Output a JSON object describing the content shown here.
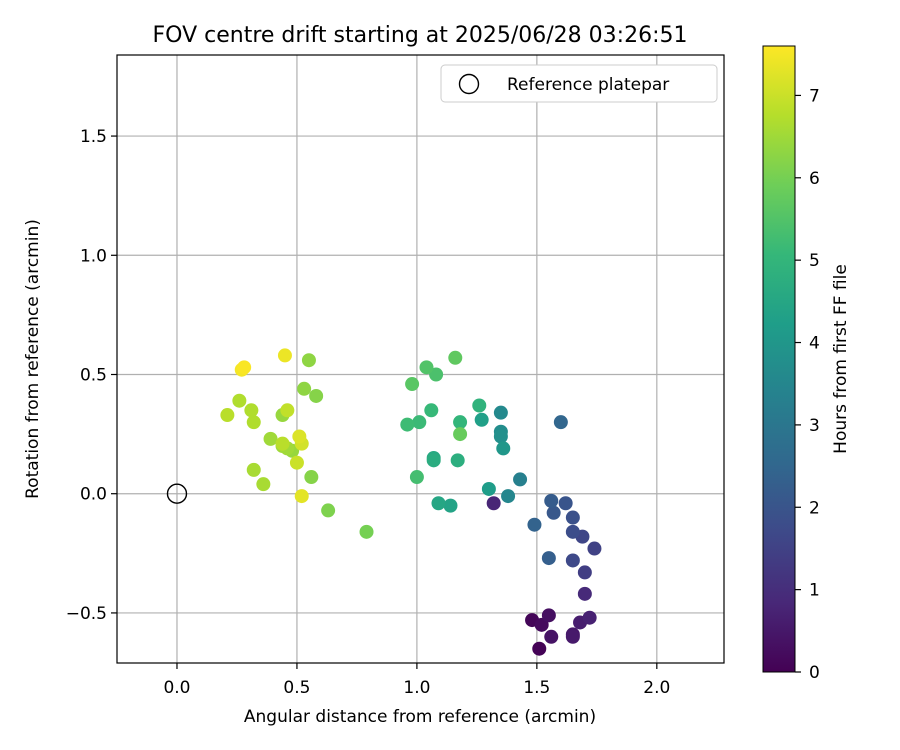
{
  "chart_data": {
    "type": "scatter",
    "title": "FOV centre drift starting at 2025/06/28 03:26:51",
    "xlabel": "Angular distance from reference (arcmin)",
    "ylabel": "Rotation from reference (arcmin)",
    "xlim": [
      -0.25,
      2.28
    ],
    "ylim": [
      -0.71,
      1.84
    ],
    "xticks": [
      "0.0",
      "0.5",
      "1.0",
      "1.5",
      "2.0"
    ],
    "xtick_values": [
      0.0,
      0.5,
      1.0,
      1.5,
      2.0
    ],
    "yticks": [
      "−0.5",
      "0.0",
      "0.5",
      "1.0",
      "1.5"
    ],
    "ytick_values": [
      -0.5,
      0.0,
      0.5,
      1.0,
      1.5
    ],
    "grid": true,
    "legend": {
      "position": "top-right",
      "entries": [
        {
          "label": "Reference platepar",
          "marker": "open-circle"
        }
      ]
    },
    "reference_point": {
      "x": 0.0,
      "y": 0.0
    },
    "colorbar": {
      "label": "Hours from first FF file",
      "colormap": "viridis",
      "range": [
        0,
        7.6
      ],
      "ticks": [
        "0",
        "1",
        "2",
        "3",
        "4",
        "5",
        "6",
        "7"
      ],
      "tick_values": [
        0,
        1,
        2,
        3,
        4,
        5,
        6,
        7
      ]
    },
    "series": [
      {
        "points": [
          [
            1.51,
            -0.65,
            0.05
          ],
          [
            1.48,
            -0.53,
            0.1
          ],
          [
            1.52,
            -0.55,
            0.2
          ],
          [
            1.55,
            -0.51,
            0.3
          ],
          [
            1.56,
            -0.6,
            0.4
          ],
          [
            1.65,
            -0.59,
            0.5
          ],
          [
            1.65,
            -0.6,
            0.55
          ],
          [
            1.68,
            -0.54,
            0.6
          ],
          [
            1.72,
            -0.52,
            0.7
          ],
          [
            1.32,
            -0.04,
            0.8
          ],
          [
            1.7,
            -0.42,
            0.9
          ],
          [
            1.7,
            -0.33,
            1.4
          ],
          [
            1.74,
            -0.23,
            1.5
          ],
          [
            1.69,
            -0.18,
            1.6
          ],
          [
            1.65,
            -0.28,
            1.7
          ],
          [
            1.65,
            -0.16,
            1.8
          ],
          [
            1.65,
            -0.1,
            1.9
          ],
          [
            1.62,
            -0.04,
            2.0
          ],
          [
            1.57,
            -0.08,
            2.1
          ],
          [
            1.56,
            -0.03,
            2.2
          ],
          [
            1.55,
            -0.27,
            2.3
          ],
          [
            1.49,
            -0.13,
            2.4
          ],
          [
            1.6,
            0.3,
            2.5
          ],
          [
            1.43,
            0.06,
            3.3
          ],
          [
            1.38,
            -0.01,
            3.5
          ],
          [
            1.35,
            0.34,
            3.6
          ],
          [
            1.35,
            0.26,
            3.7
          ],
          [
            1.35,
            0.24,
            3.8
          ],
          [
            1.36,
            0.19,
            4.0
          ],
          [
            1.3,
            0.02,
            4.2
          ],
          [
            1.27,
            0.31,
            4.3
          ],
          [
            1.14,
            -0.05,
            4.4
          ],
          [
            1.09,
            -0.04,
            4.5
          ],
          [
            1.07,
            0.15,
            4.6
          ],
          [
            1.07,
            0.14,
            4.7
          ],
          [
            1.17,
            0.14,
            4.75
          ],
          [
            1.26,
            0.37,
            4.9
          ],
          [
            1.18,
            0.3,
            5.0
          ],
          [
            1.06,
            0.35,
            5.1
          ],
          [
            1.01,
            0.3,
            5.15
          ],
          [
            0.96,
            0.29,
            5.2
          ],
          [
            1.0,
            0.07,
            5.3
          ],
          [
            1.08,
            0.5,
            5.4
          ],
          [
            1.04,
            0.53,
            5.5
          ],
          [
            0.98,
            0.46,
            5.6
          ],
          [
            1.16,
            0.57,
            5.7
          ],
          [
            1.18,
            0.25,
            5.8
          ],
          [
            0.79,
            -0.16,
            6.0
          ],
          [
            0.63,
            -0.07,
            6.1
          ],
          [
            0.56,
            0.07,
            6.2
          ],
          [
            0.58,
            0.41,
            6.2
          ],
          [
            0.55,
            0.56,
            6.3
          ],
          [
            0.53,
            0.44,
            6.3
          ],
          [
            0.44,
            0.33,
            6.4
          ],
          [
            0.48,
            0.18,
            6.4
          ],
          [
            0.46,
            0.19,
            6.5
          ],
          [
            0.44,
            0.2,
            6.5
          ],
          [
            0.39,
            0.23,
            6.5
          ],
          [
            0.36,
            0.04,
            6.6
          ],
          [
            0.32,
            0.1,
            6.6
          ],
          [
            0.32,
            0.3,
            6.7
          ],
          [
            0.31,
            0.35,
            6.7
          ],
          [
            0.26,
            0.39,
            6.7
          ],
          [
            0.21,
            0.33,
            6.8
          ],
          [
            0.44,
            0.21,
            6.8
          ],
          [
            0.46,
            0.35,
            6.9
          ],
          [
            0.5,
            0.13,
            7.0
          ],
          [
            0.52,
            0.21,
            7.1
          ],
          [
            0.51,
            0.24,
            7.2
          ],
          [
            0.52,
            -0.01,
            7.3
          ],
          [
            0.45,
            0.58,
            7.4
          ],
          [
            0.27,
            0.52,
            7.5
          ],
          [
            0.28,
            0.53,
            7.55
          ]
        ]
      }
    ]
  }
}
